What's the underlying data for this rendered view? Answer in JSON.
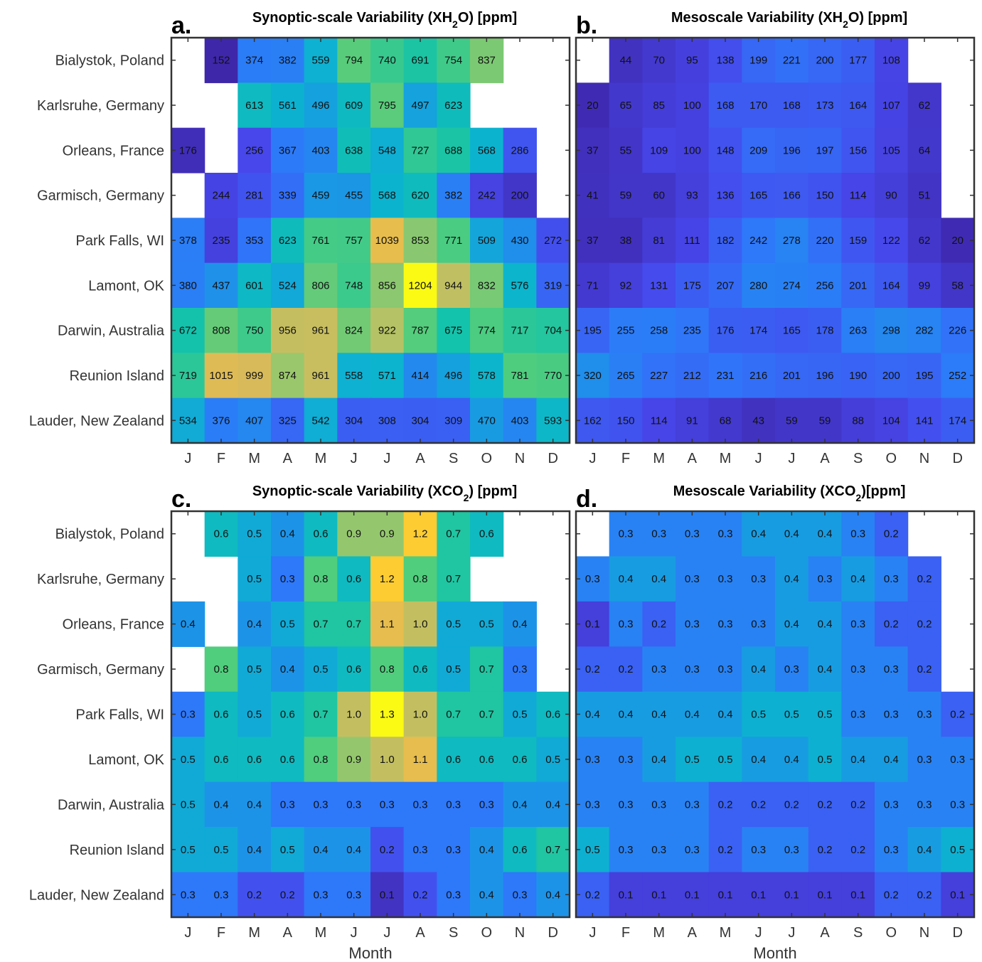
{
  "months": [
    "J",
    "F",
    "M",
    "A",
    "M",
    "J",
    "J",
    "A",
    "S",
    "O",
    "N",
    "D"
  ],
  "sites": [
    "Bialystok, Poland",
    "Karlsruhe, Germany",
    "Orleans, France",
    "Garmisch, Germany",
    "Park Falls, WI",
    "Lamont, OK",
    "Darwin, Australia",
    "Reunion Island",
    "Lauder, New Zealand"
  ],
  "xlabel": "Month",
  "colormap": "parula",
  "chart_data": [
    {
      "type": "heatmap",
      "letter": "a.",
      "title_main": "Synoptic-scale Variability (XH",
      "title_sub": "2",
      "title_end": "O) [ppm]",
      "xlabel": "",
      "vmin": 150,
      "vmax": 1204,
      "values": [
        [
          null,
          152,
          374,
          382,
          559,
          794,
          740,
          691,
          754,
          837,
          null,
          null
        ],
        [
          null,
          null,
          613,
          561,
          496,
          609,
          795,
          497,
          623,
          null,
          null,
          null
        ],
        [
          176,
          null,
          256,
          367,
          403,
          638,
          548,
          727,
          688,
          568,
          286,
          null
        ],
        [
          null,
          244,
          281,
          339,
          459,
          455,
          568,
          620,
          382,
          242,
          200,
          null
        ],
        [
          378,
          235,
          353,
          623,
          761,
          757,
          1039,
          853,
          771,
          509,
          430,
          272
        ],
        [
          380,
          437,
          601,
          524,
          806,
          748,
          856,
          1204,
          944,
          832,
          576,
          319
        ],
        [
          672,
          808,
          750,
          956,
          961,
          824,
          922,
          787,
          675,
          774,
          717,
          704
        ],
        [
          719,
          1015,
          999,
          874,
          961,
          558,
          571,
          414,
          496,
          578,
          781,
          770
        ],
        [
          534,
          376,
          407,
          325,
          542,
          304,
          308,
          304,
          309,
          470,
          403,
          593
        ]
      ],
      "labels": [
        [
          "",
          "152",
          "374",
          "382",
          "559",
          "794",
          "740",
          "691",
          "754",
          "837",
          "",
          ""
        ],
        [
          "",
          "",
          "613",
          "561",
          "496",
          "609",
          "795",
          "497",
          "623",
          "",
          "",
          ""
        ],
        [
          "176",
          "",
          "256",
          "367",
          "403",
          "638",
          "548",
          "727",
          "688",
          "568",
          "286",
          ""
        ],
        [
          "",
          "244",
          "281",
          "339",
          "459",
          "455",
          "568",
          "620",
          "382",
          "242",
          "200",
          ""
        ],
        [
          "378",
          "235",
          "353",
          "623",
          "761",
          "757",
          "1039",
          "853",
          "771",
          "509",
          "430",
          "272"
        ],
        [
          "380",
          "437",
          "601",
          "524",
          "806",
          "748",
          "856",
          "1204",
          "944",
          "832",
          "576",
          "319"
        ],
        [
          "672",
          "808",
          "750",
          "956",
          "961",
          "824",
          "922",
          "787",
          "675",
          "774",
          "717",
          "704"
        ],
        [
          "719",
          "1015",
          "999",
          "874",
          "961",
          "558",
          "571",
          "414",
          "496",
          "578",
          "781",
          "770"
        ],
        [
          "534",
          "376",
          "407",
          "325",
          "542",
          "304",
          "308",
          "304",
          "309",
          "470",
          "403",
          "593"
        ]
      ]
    },
    {
      "type": "heatmap",
      "letter": "b.",
      "title_main": "Mesoscale Variability (XH",
      "title_sub": "2",
      "title_end": "O) [ppm]",
      "xlabel": "",
      "vmin": 0,
      "vmax": 1204,
      "values": [
        [
          null,
          44,
          70,
          95,
          138,
          199,
          221,
          200,
          177,
          108,
          null,
          null
        ],
        [
          20,
          65,
          85,
          100,
          168,
          170,
          168,
          173,
          164,
          107,
          62,
          null
        ],
        [
          37,
          55,
          109,
          100,
          148,
          209,
          196,
          197,
          156,
          105,
          64,
          null
        ],
        [
          41,
          59,
          60,
          93,
          136,
          165,
          166,
          150,
          114,
          90,
          51,
          null
        ],
        [
          37,
          38,
          81,
          111,
          182,
          242,
          278,
          220,
          159,
          122,
          62,
          20
        ],
        [
          71,
          92,
          131,
          175,
          207,
          280,
          274,
          256,
          201,
          164,
          99,
          58
        ],
        [
          195,
          255,
          258,
          235,
          176,
          174,
          165,
          178,
          263,
          298,
          282,
          226
        ],
        [
          320,
          265,
          227,
          212,
          231,
          216,
          201,
          196,
          190,
          200,
          195,
          252
        ],
        [
          162,
          150,
          114,
          91,
          68,
          43,
          59,
          59,
          88,
          104,
          141,
          174
        ]
      ],
      "labels": [
        [
          "",
          "44",
          "70",
          "95",
          "138",
          "199",
          "221",
          "200",
          "177",
          "108",
          "",
          ""
        ],
        [
          "20",
          "65",
          "85",
          "100",
          "168",
          "170",
          "168",
          "173",
          "164",
          "107",
          "62",
          ""
        ],
        [
          "37",
          "55",
          "109",
          "100",
          "148",
          "209",
          "196",
          "197",
          "156",
          "105",
          "64",
          ""
        ],
        [
          "41",
          "59",
          "60",
          "93",
          "136",
          "165",
          "166",
          "150",
          "114",
          "90",
          "51",
          ""
        ],
        [
          "37",
          "38",
          "81",
          "111",
          "182",
          "242",
          "278",
          "220",
          "159",
          "122",
          "62",
          "20"
        ],
        [
          "71",
          "92",
          "131",
          "175",
          "207",
          "280",
          "274",
          "256",
          "201",
          "164",
          "99",
          "58"
        ],
        [
          "195",
          "255",
          "258",
          "235",
          "176",
          "174",
          "165",
          "178",
          "263",
          "298",
          "282",
          "226"
        ],
        [
          "320",
          "265",
          "227",
          "212",
          "231",
          "216",
          "201",
          "196",
          "190",
          "200",
          "195",
          "252"
        ],
        [
          "162",
          "150",
          "114",
          "91",
          "68",
          "43",
          "59",
          "59",
          "88",
          "104",
          "141",
          "174"
        ]
      ]
    },
    {
      "type": "heatmap",
      "letter": "c.",
      "title_main": "Synoptic-scale Variability (XCO",
      "title_sub": "2",
      "title_end": ") [ppm]",
      "xlabel": "Month",
      "vmin": 0.05,
      "vmax": 1.3,
      "values": [
        [
          null,
          0.6,
          0.5,
          0.4,
          0.6,
          0.9,
          0.9,
          1.2,
          0.7,
          0.6,
          null,
          null
        ],
        [
          null,
          null,
          0.5,
          0.3,
          0.8,
          0.6,
          1.2,
          0.8,
          0.7,
          null,
          null,
          null
        ],
        [
          0.4,
          null,
          0.4,
          0.5,
          0.7,
          0.7,
          1.1,
          1.0,
          0.5,
          0.5,
          0.4,
          null
        ],
        [
          null,
          0.8,
          0.5,
          0.4,
          0.5,
          0.6,
          0.8,
          0.6,
          0.5,
          0.7,
          0.3,
          null
        ],
        [
          0.3,
          0.6,
          0.5,
          0.6,
          0.7,
          1.0,
          1.3,
          1.0,
          0.7,
          0.7,
          0.5,
          0.6
        ],
        [
          0.5,
          0.6,
          0.6,
          0.6,
          0.8,
          0.9,
          1.0,
          1.1,
          0.6,
          0.6,
          0.6,
          0.5
        ],
        [
          0.5,
          0.4,
          0.4,
          0.3,
          0.3,
          0.3,
          0.3,
          0.3,
          0.3,
          0.3,
          0.4,
          0.4
        ],
        [
          0.5,
          0.5,
          0.4,
          0.5,
          0.4,
          0.4,
          0.2,
          0.3,
          0.3,
          0.4,
          0.6,
          0.7
        ],
        [
          0.3,
          0.3,
          0.2,
          0.2,
          0.3,
          0.3,
          0.1,
          0.2,
          0.3,
          0.4,
          0.3,
          0.4
        ]
      ],
      "labels": [
        [
          "",
          "0.6",
          "0.5",
          "0.4",
          "0.6",
          "0.9",
          "0.9",
          "1.2",
          "0.7",
          "0.6",
          "",
          ""
        ],
        [
          "",
          "",
          "0.5",
          "0.3",
          "0.8",
          "0.6",
          "1.2",
          "0.8",
          "0.7",
          "",
          "",
          ""
        ],
        [
          "0.4",
          "",
          "0.4",
          "0.5",
          "0.7",
          "0.7",
          "1.1",
          "1.0",
          "0.5",
          "0.5",
          "0.4",
          ""
        ],
        [
          "",
          "0.8",
          "0.5",
          "0.4",
          "0.5",
          "0.6",
          "0.8",
          "0.6",
          "0.5",
          "0.7",
          "0.3",
          ""
        ],
        [
          "0.3",
          "0.6",
          "0.5",
          "0.6",
          "0.7",
          "1.0",
          "1.3",
          "1.0",
          "0.7",
          "0.7",
          "0.5",
          "0.6"
        ],
        [
          "0.5",
          "0.6",
          "0.6",
          "0.6",
          "0.8",
          "0.9",
          "1.0",
          "1.1",
          "0.6",
          "0.6",
          "0.6",
          "0.5"
        ],
        [
          "0.5",
          "0.4",
          "0.4",
          "0.3",
          "0.3",
          "0.3",
          "0.3",
          "0.3",
          "0.3",
          "0.3",
          "0.4",
          "0.4"
        ],
        [
          "0.5",
          "0.5",
          "0.4",
          "0.5",
          "0.4",
          "0.4",
          "0.2",
          "0.3",
          "0.3",
          "0.4",
          "0.6",
          "0.7"
        ],
        [
          "0.3",
          "0.3",
          "0.2",
          "0.2",
          "0.3",
          "0.3",
          "0.1",
          "0.2",
          "0.3",
          "0.4",
          "0.3",
          "0.4"
        ]
      ]
    },
    {
      "type": "heatmap",
      "letter": "d.",
      "title_main": "Mesoscale Variability (XCO",
      "title_sub": "2",
      "title_end": ")[ppm]",
      "xlabel": "Month",
      "vmin": 0.0,
      "vmax": 1.3,
      "values": [
        [
          null,
          0.3,
          0.3,
          0.3,
          0.3,
          0.4,
          0.4,
          0.4,
          0.3,
          0.2,
          null,
          null
        ],
        [
          0.3,
          0.4,
          0.4,
          0.3,
          0.3,
          0.3,
          0.4,
          0.3,
          0.4,
          0.3,
          0.2,
          null
        ],
        [
          0.1,
          0.3,
          0.2,
          0.3,
          0.3,
          0.3,
          0.4,
          0.4,
          0.3,
          0.2,
          0.2,
          null
        ],
        [
          0.2,
          0.2,
          0.3,
          0.3,
          0.3,
          0.4,
          0.3,
          0.4,
          0.3,
          0.3,
          0.2,
          null
        ],
        [
          0.4,
          0.4,
          0.4,
          0.4,
          0.4,
          0.5,
          0.5,
          0.5,
          0.3,
          0.3,
          0.3,
          0.2
        ],
        [
          0.3,
          0.3,
          0.4,
          0.5,
          0.5,
          0.4,
          0.4,
          0.5,
          0.4,
          0.4,
          0.3,
          0.3
        ],
        [
          0.3,
          0.3,
          0.3,
          0.3,
          0.2,
          0.2,
          0.2,
          0.2,
          0.2,
          0.3,
          0.3,
          0.3
        ],
        [
          0.5,
          0.3,
          0.3,
          0.3,
          0.2,
          0.3,
          0.3,
          0.2,
          0.2,
          0.3,
          0.4,
          0.5
        ],
        [
          0.2,
          0.1,
          0.1,
          0.1,
          0.1,
          0.1,
          0.1,
          0.1,
          0.1,
          0.2,
          0.2,
          0.1
        ]
      ],
      "labels": [
        [
          "",
          "0.3",
          "0.3",
          "0.3",
          "0.3",
          "0.4",
          "0.4",
          "0.4",
          "0.3",
          "0.2",
          "",
          ""
        ],
        [
          "0.3",
          "0.4",
          "0.4",
          "0.3",
          "0.3",
          "0.3",
          "0.4",
          "0.3",
          "0.4",
          "0.3",
          "0.2",
          ""
        ],
        [
          "0.1",
          "0.3",
          "0.2",
          "0.3",
          "0.3",
          "0.3",
          "0.4",
          "0.4",
          "0.3",
          "0.2",
          "0.2",
          ""
        ],
        [
          "0.2",
          "0.2",
          "0.3",
          "0.3",
          "0.3",
          "0.4",
          "0.3",
          "0.4",
          "0.3",
          "0.3",
          "0.2",
          ""
        ],
        [
          "0.4",
          "0.4",
          "0.4",
          "0.4",
          "0.4",
          "0.5",
          "0.5",
          "0.5",
          "0.3",
          "0.3",
          "0.3",
          "0.2"
        ],
        [
          "0.3",
          "0.3",
          "0.4",
          "0.5",
          "0.5",
          "0.4",
          "0.4",
          "0.5",
          "0.4",
          "0.4",
          "0.3",
          "0.3"
        ],
        [
          "0.3",
          "0.3",
          "0.3",
          "0.3",
          "0.2",
          "0.2",
          "0.2",
          "0.2",
          "0.2",
          "0.3",
          "0.3",
          "0.3"
        ],
        [
          "0.5",
          "0.3",
          "0.3",
          "0.3",
          "0.2",
          "0.3",
          "0.3",
          "0.2",
          "0.2",
          "0.3",
          "0.4",
          "0.5"
        ],
        [
          "0.2",
          "0.1",
          "0.1",
          "0.1",
          "0.1",
          "0.1",
          "0.1",
          "0.1",
          "0.1",
          "0.2",
          "0.2",
          "0.1"
        ]
      ]
    }
  ]
}
